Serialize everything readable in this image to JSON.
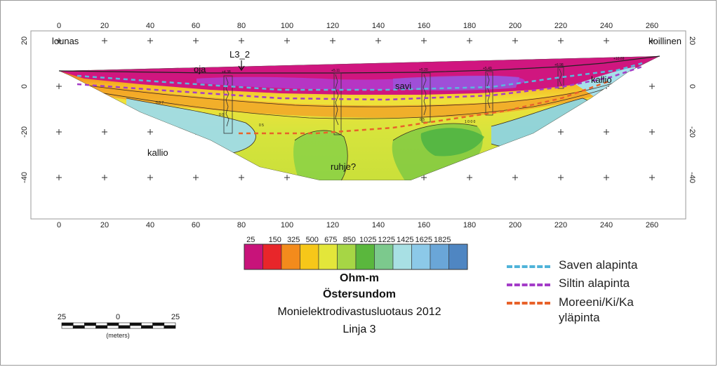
{
  "axes": {
    "x_ticks": [
      "0",
      "20",
      "40",
      "60",
      "80",
      "100",
      "120",
      "140",
      "160",
      "180",
      "200",
      "220",
      "240",
      "260"
    ],
    "y_ticks": [
      "20",
      "0",
      "-20",
      "-40"
    ]
  },
  "labels": {
    "southwest": "lounas",
    "northeast": "koillinen",
    "oja": "oja",
    "sounding_id": "L3_2",
    "savi": "savi",
    "kallio_right": "kallio",
    "kallio_left": "kallio",
    "ruhje": "ruhje?"
  },
  "elevations": [
    "+4.38",
    "+5.11",
    "+5.20",
    "+5.49",
    "+6.98",
    "+10.69"
  ],
  "colorbar": {
    "ticks": [
      "25",
      "150",
      "325",
      "500",
      "675",
      "850",
      "1025",
      "1225",
      "1425",
      "1625",
      "1825"
    ],
    "colors": [
      "#c8137a",
      "#e8262a",
      "#f38b1c",
      "#f6c719",
      "#e3e63a",
      "#a6d645",
      "#5ab73d",
      "#7cc98d",
      "#a8e0e4",
      "#8cc9e8",
      "#6aa6d8",
      "#4f86c2"
    ],
    "unit": "Ohm-m"
  },
  "title": "Östersundom",
  "subtitle": "Monielektrodivastusluotaus 2012",
  "line_name": "Linja 3",
  "scale_bar": {
    "left": "25",
    "center": "0",
    "right": "25",
    "unit": "(meters)"
  },
  "legend": [
    {
      "label": "Saven alapinta",
      "color": "#4fb3d9"
    },
    {
      "label": "Siltin alapinta",
      "color": "#a43cc8"
    },
    {
      "label": "Moreeni/Ki/Ka\nyläpinta",
      "color": "#e8622a"
    }
  ],
  "contour_labels": [
    "0.0 7",
    "0 0",
    "0 5",
    "0.5",
    "1 0 0 0"
  ]
}
